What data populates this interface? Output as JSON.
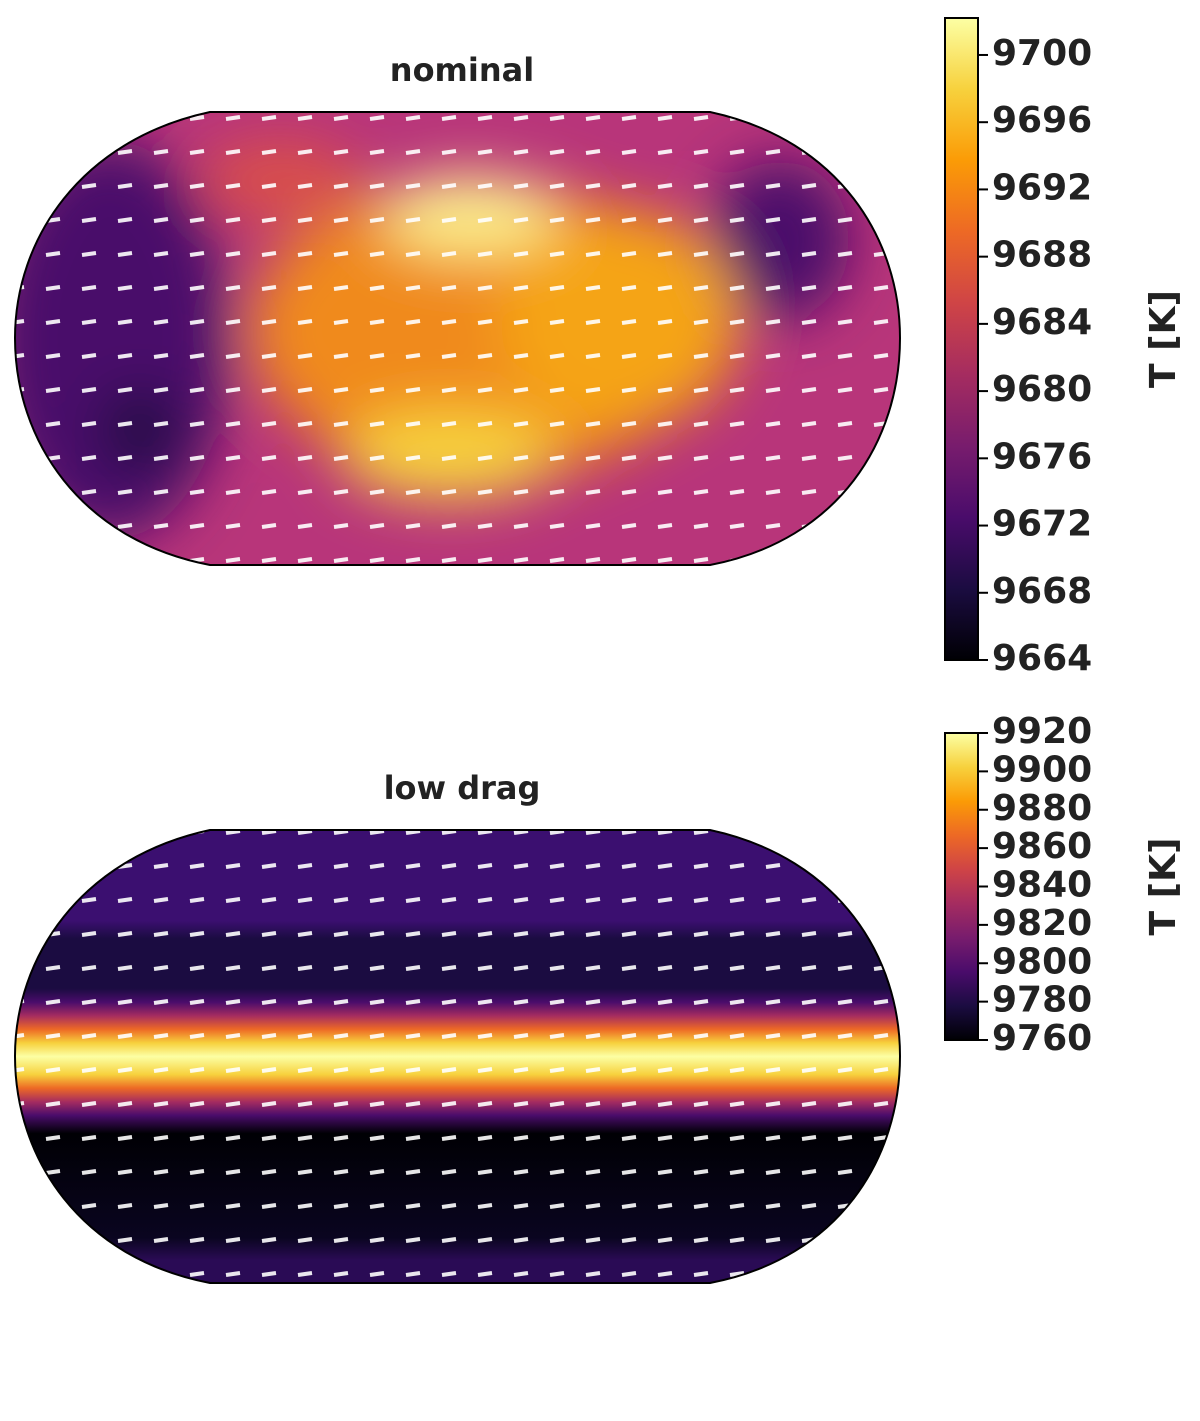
{
  "chart_data": [
    {
      "type": "map",
      "title": "nominal",
      "colorbar_label": "T [K]",
      "clim": [
        9664,
        9702.2
      ],
      "cticks": [
        9664,
        9668,
        9672,
        9676,
        9680,
        9684,
        9688,
        9692,
        9696,
        9700
      ],
      "colors": [
        "#000004",
        "#1b0c41",
        "#4a0c6b",
        "#781c6d",
        "#a52c60",
        "#cf4446",
        "#ed6925",
        "#fb9b06",
        "#f7d13d",
        "#fcffa4"
      ]
    },
    {
      "type": "map",
      "title": "low drag",
      "colorbar_label": "T [K]",
      "clim": [
        9760,
        9920
      ],
      "cticks": [
        9760,
        9780,
        9800,
        9820,
        9840,
        9860,
        9880,
        9900,
        9920
      ],
      "colors": [
        "#000004",
        "#1b0c41",
        "#4a0c6b",
        "#781c6d",
        "#a52c60",
        "#cf4446",
        "#ed6925",
        "#fb9b06",
        "#f7d13d",
        "#fcffa4"
      ]
    }
  ]
}
